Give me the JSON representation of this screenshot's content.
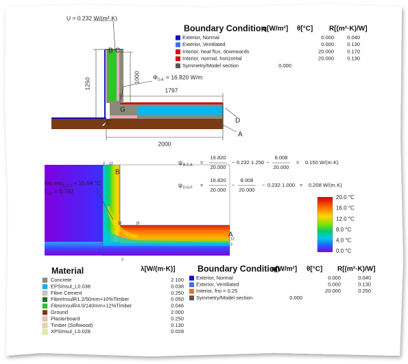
{
  "top_drawing": {
    "u_value": "U = 0.232 W/(m²·K)",
    "dim_height_total": "1250",
    "dim_height_wall": "1000",
    "dim_slab": "1797",
    "dim_width": "2000",
    "flux_symbol": "Φ",
    "flux_sub": "D-A",
    "flux_value": "= 16.820 W/m",
    "points": {
      "a": "A",
      "b": "B",
      "c": "C",
      "d": "D",
      "g": "G"
    }
  },
  "boundary_top": {
    "title": "Boundary Condition",
    "headers": [
      "q[W/m²]",
      "θ[°C]",
      "R[(m²·K)/W]"
    ],
    "rows": [
      {
        "name": "Exterior, Normal",
        "q": null,
        "theta": "0.000",
        "r": "0.040"
      },
      {
        "name": "Exterior, Ventilated",
        "q": null,
        "theta": "0.000",
        "r": "0.130"
      },
      {
        "name": "Interior, heat flux, downwards",
        "q": null,
        "theta": "20.000",
        "r": "0.170"
      },
      {
        "name": "Interior, normal, horizontal",
        "q": null,
        "theta": "20.000",
        "r": "0.130"
      },
      {
        "name": "Symmetry/Model section",
        "q": "0.000",
        "theta": null,
        "r": null
      }
    ]
  },
  "formulas": [
    {
      "symbol": "ψ",
      "sub": "B-C-A",
      "tokens": [
        "=",
        "16.820",
        "20.000",
        "−",
        "0.232·1.250",
        "−",
        "8.008",
        "20.000",
        "=",
        "0.150 W/(m·K)"
      ]
    },
    {
      "symbol": "ψ",
      "sub": "D-G-F",
      "tokens": [
        "=",
        "16.820",
        "20.000",
        "−",
        "8.008",
        "20.000",
        "−",
        "0.232·1.000",
        "=",
        "0.208 W/(m·K)"
      ]
    }
  ],
  "temperature_field": {
    "theta_label": "θsi min",
    "theta_sub": "D-G-F",
    "theta_value": "= 15.64 °C",
    "frsi_label": "f",
    "frsi_sub": "Rsi",
    "frsi_value": "= 0.782",
    "point_b": "B",
    "point_a": "A",
    "small_labels": [
      "3",
      "13",
      "18",
      "18",
      "13",
      "3",
      "3"
    ],
    "scale": [
      "20.0 °C",
      "16.0 °C",
      "12.0 °C",
      "8.0 °C",
      "4.0 °C",
      "0.0 °C"
    ]
  },
  "materials": {
    "title": "Material",
    "header": "λ[W/(m·K)]",
    "rows": [
      {
        "name": "Concrete",
        "lambda": "2.100"
      },
      {
        "name": "EPSInsul_L0.038",
        "lambda": "0.038"
      },
      {
        "name": "Fibre Cement",
        "lambda": "0.250"
      },
      {
        "name": "FibreInsulR1.2/50mm+10%Timber",
        "lambda": "0.050"
      },
      {
        "name": "FibreInsulR4.0/140mm+12%Timber",
        "lambda": "0.046"
      },
      {
        "name": "Ground",
        "lambda": "2.000"
      },
      {
        "name": "Plasterboard",
        "lambda": "0.250"
      },
      {
        "name": "Timber (Softwood)",
        "lambda": "0.130"
      },
      {
        "name": "XPSInsul_L0.028",
        "lambda": "0.028"
      }
    ]
  },
  "boundary_bottom": {
    "title": "Boundary Condition",
    "headers": [
      "q[W/m²]",
      "θ[°C]",
      "R[(m²·K)/W]"
    ],
    "rows": [
      {
        "name": "Exterior, Normal",
        "q": null,
        "theta": "0.000",
        "r": "0.040"
      },
      {
        "name": "Exterior, Ventilated",
        "q": null,
        "theta": "0.000",
        "r": "0.130"
      },
      {
        "name": "Interior, frsi = 0.25",
        "q": null,
        "theta": "20.000",
        "r": "0.250"
      },
      {
        "name": "Symmetry/Model section",
        "q": "0.000",
        "theta": null,
        "r": null
      }
    ]
  }
}
